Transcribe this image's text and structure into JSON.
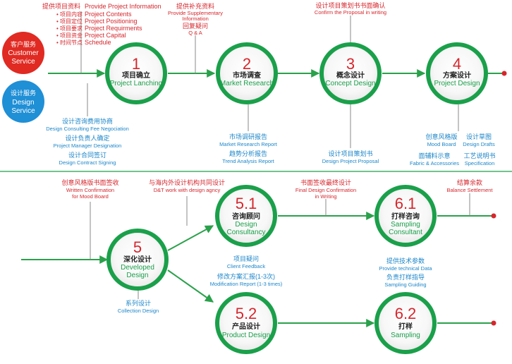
{
  "left_badges": [
    {
      "cn": "客户服务",
      "en1": "Customer",
      "en2": "Service",
      "color": "#e02a22"
    },
    {
      "cn": "设计服务",
      "en1": "Design",
      "en2": "Service",
      "color": "#1f8fd6"
    }
  ],
  "colors": {
    "accent_green": "#1aa04a",
    "red_text": "#d6262c",
    "blue_text": "#1b86c9",
    "line_green": "#2aa14b"
  },
  "top_note": {
    "cn_title": "提供项目资料",
    "cn_items": [
      "项目内容",
      "项目定位",
      "项目要求",
      "项目资金",
      "时间节点"
    ],
    "en_items": [
      "Provide Project Information",
      "Project Contents",
      "Project Positioning",
      "Project Requirments",
      "Project Capital",
      "Schedule"
    ]
  },
  "supp_note": {
    "cn": "提供补充资料",
    "en1": "Provide  Supplementary",
    "en2": "Information",
    "cn2": "回复疑问",
    "en3": "Q & A"
  },
  "confirm_note": {
    "cn": "设计项目策划书书面确认",
    "en": "Confirm the Proposal in writing"
  },
  "stages_top": [
    {
      "num": "1",
      "cn": "项目确立",
      "en": "Project Lanching"
    },
    {
      "num": "2",
      "cn": "市场调查",
      "en": "Market Research"
    },
    {
      "num": "3",
      "cn": "概念设计",
      "en": "Concept Design"
    },
    {
      "num": "4",
      "cn": "方案设计",
      "en": "Project Design"
    }
  ],
  "stage1_notes": [
    {
      "cn": "设计咨询费用协商",
      "en": "Design Consulting Fee Negociation"
    },
    {
      "cn": "设计负责人确定",
      "en": "Project Manager Designation"
    },
    {
      "cn": "设计合同签订",
      "en": "Design Contract Signing"
    }
  ],
  "stage2_notes": [
    {
      "cn": "市场调研报告",
      "en": "Market Research Report"
    },
    {
      "cn": "趋势分析报告",
      "en": "Trend Analysis Report"
    }
  ],
  "stage3_notes": [
    {
      "cn": "设计项目策划书",
      "en": "Design Project Proposal"
    }
  ],
  "stage4_notes": [
    {
      "cn": "创意风格版",
      "en": "Mood Board"
    },
    {
      "cn": "设计草图",
      "en": "Design Drafts"
    },
    {
      "cn": "面辅料示意",
      "en": "Fabric & Accessories"
    },
    {
      "cn": "工艺说明书",
      "en": "Specification"
    }
  ],
  "mood_note": {
    "cn": "创意风格版书面签收",
    "en1": "Written Confirmation",
    "en2": "for Mood Board"
  },
  "overseas_note": {
    "cn": "与海内外设计机构共同设计",
    "en": "D&T work with design agncy"
  },
  "final_note": {
    "cn": "书面签收最终设计",
    "en1": "Final Design Confirmation",
    "en2": "in Writing"
  },
  "balance_note": {
    "cn": "结算余款",
    "en": "Balance Settlement"
  },
  "stage5": {
    "num": "5",
    "cn": "深化设计",
    "en1": "Developed",
    "en2": "Design"
  },
  "stage5_note": {
    "cn": "系列设计",
    "en": "Collection Design"
  },
  "stage51": {
    "num": "5.1",
    "cn": "咨询顾问",
    "en1": "Design",
    "en2": "Consultancy"
  },
  "stage51_notes": [
    {
      "cn": "项目疑问",
      "en": "Client Feedback"
    },
    {
      "cn": "修改方案汇报(1-3次)",
      "en": "Modification Report (1-3 times)"
    }
  ],
  "stage61": {
    "num": "6.1",
    "cn": "打样咨询",
    "en1": "Sampling",
    "en2": "Consultant"
  },
  "stage61_notes": [
    {
      "cn": "提供技术参数",
      "en": "Provide technical Data"
    },
    {
      "cn": "负责打样指导",
      "en": "Sampling Guiding"
    }
  ],
  "stage52": {
    "num": "5.2",
    "cn": "产品设计",
    "en": "Product Design"
  },
  "stage62": {
    "num": "6.2",
    "cn": "打样",
    "en": "Sampling"
  }
}
